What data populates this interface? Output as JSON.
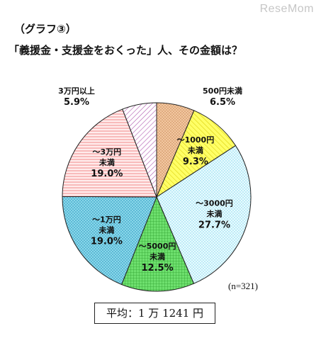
{
  "watermark": "ReseMom",
  "graph_number": "（グラフ③）",
  "title": "「義援金・支援金をおくった」人、その金額は？",
  "sample_note": "(n=321)",
  "average_box": "平均：1 万 1241 円",
  "chart_data": {
    "type": "pie",
    "title": "「義援金・支援金をおくった」人、その金額は？",
    "start": "12 o'clock, clockwise",
    "slices": [
      {
        "label_lines": [
          "500円未満"
        ],
        "value_text": "6.5%",
        "value": 6.5,
        "fill": "#f2c7a1",
        "pattern": "dots",
        "label_inside": false
      },
      {
        "label_lines": [
          "～1000円",
          "未満"
        ],
        "value_text": "9.3%",
        "value": 9.3,
        "fill": "#ffff66",
        "pattern": "hatch",
        "label_inside": true
      },
      {
        "label_lines": [
          "～3000円",
          "未満"
        ],
        "value_text": "27.7%",
        "value": 27.7,
        "fill": "#e8fbff",
        "pattern": "lightdots",
        "label_inside": true
      },
      {
        "label_lines": [
          "～5000円",
          "未満"
        ],
        "value_text": "12.5%",
        "value": 12.5,
        "fill": "#55dd55",
        "pattern": "grid",
        "label_inside": true
      },
      {
        "label_lines": [
          "～1万円",
          "未満"
        ],
        "value_text": "19.0%",
        "value": 19.0,
        "fill": "#79cfe6",
        "pattern": "dots",
        "label_inside": true
      },
      {
        "label_lines": [
          "～3万円",
          "未満"
        ],
        "value_text": "19.0%",
        "value": 19.0,
        "fill": "#ffe8e8",
        "pattern": "stripes",
        "label_inside": true
      },
      {
        "label_lines": [
          "3万円以上"
        ],
        "value_text": "5.9%",
        "value": 5.9,
        "fill": "#f6e8f6",
        "pattern": "dhatch",
        "label_inside": false
      }
    ]
  }
}
